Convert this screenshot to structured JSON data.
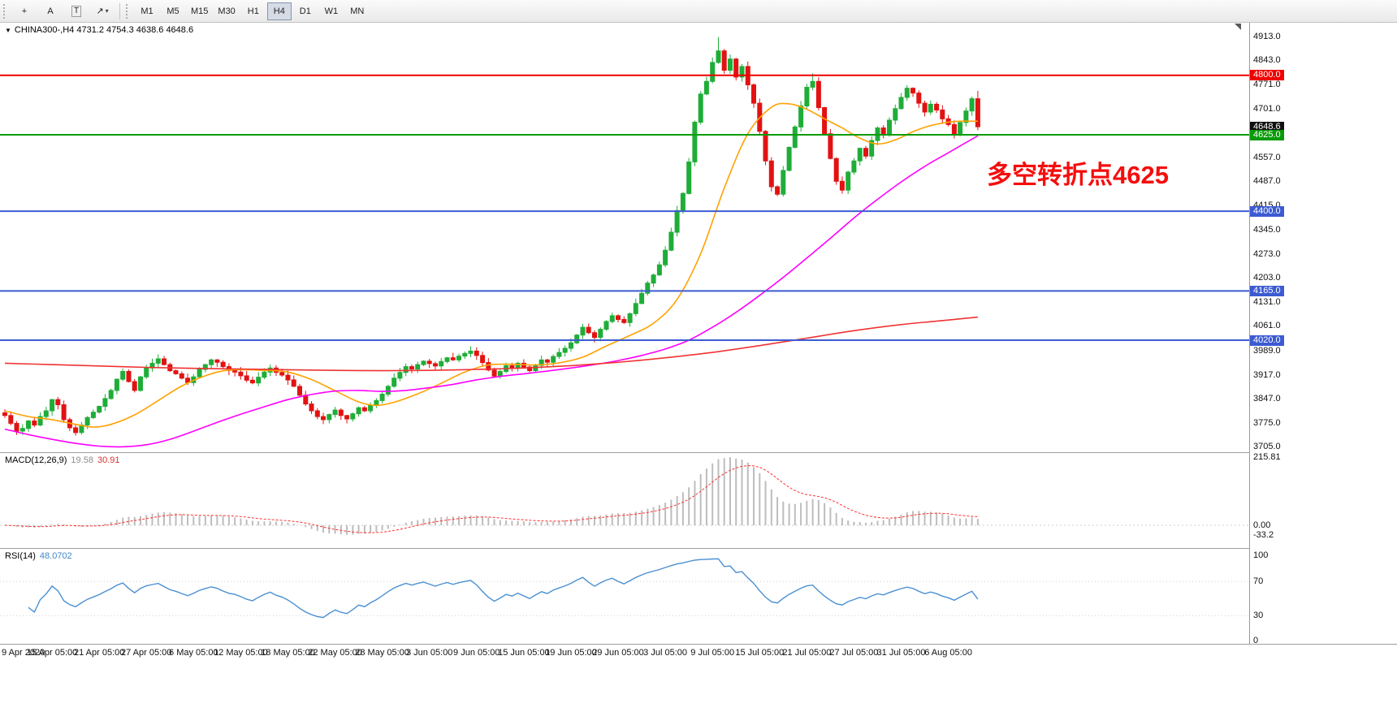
{
  "icons": {
    "chart_dropdown": "▼"
  },
  "toolbar": {
    "caret_glyph": "▾",
    "tools": [
      {
        "name": "crosshair-tool",
        "glyph": "+",
        "boxed": false,
        "has_caret": false
      },
      {
        "name": "text-label-tool",
        "glyph": "A",
        "boxed": false,
        "has_caret": false
      },
      {
        "name": "text-tool",
        "glyph": "T",
        "boxed": true,
        "has_caret": false
      },
      {
        "name": "arrow-shapes-tool",
        "glyph": "↗",
        "boxed": false,
        "has_caret": true
      }
    ],
    "timeframes": [
      {
        "label": "M1",
        "active": false
      },
      {
        "label": "M5",
        "active": false
      },
      {
        "label": "M15",
        "active": false
      },
      {
        "label": "M30",
        "active": false
      },
      {
        "label": "H1",
        "active": false
      },
      {
        "label": "H4",
        "active": true
      },
      {
        "label": "D1",
        "active": false
      },
      {
        "label": "W1",
        "active": false
      },
      {
        "label": "MN",
        "active": false
      }
    ]
  },
  "chart": {
    "symbol_line": "CHINA300-,H4 4731.2 4754.3 4638.6 4648.6",
    "annotation": {
      "text": "多空转折点4625",
      "color": "#f50d0d"
    }
  },
  "price_axis": {
    "ticks": [
      {
        "text": "4913.0",
        "value": 4913
      },
      {
        "text": "4843.0",
        "value": 4843
      },
      {
        "text": "4771.0",
        "value": 4771
      },
      {
        "text": "4701.0",
        "value": 4701
      },
      {
        "text": "4557.0",
        "value": 4557
      },
      {
        "text": "4487.0",
        "value": 4487
      },
      {
        "text": "4415.0",
        "value": 4415
      },
      {
        "text": "4345.0",
        "value": 4345
      },
      {
        "text": "4273.0",
        "value": 4273
      },
      {
        "text": "4203.0",
        "value": 4203
      },
      {
        "text": "4131.0",
        "value": 4131
      },
      {
        "text": "4061.0",
        "value": 4061
      },
      {
        "text": "3989.0",
        "value": 3989
      },
      {
        "text": "3917.0",
        "value": 3917
      },
      {
        "text": "3847.0",
        "value": 3847
      },
      {
        "text": "3775.0",
        "value": 3775
      },
      {
        "text": "3705.0",
        "value": 3705
      }
    ],
    "badges": [
      {
        "text": "4800.0",
        "value": 4800,
        "bg": "#f00000"
      },
      {
        "text": "4648.6",
        "value": 4648.6,
        "bg": "#101010"
      },
      {
        "text": "4625.0",
        "value": 4625,
        "bg": "#0a9b0a"
      },
      {
        "text": "4400.0",
        "value": 4400,
        "bg": "#3c5bd2"
      },
      {
        "text": "4165.0",
        "value": 4165,
        "bg": "#3c5bd2"
      },
      {
        "text": "4020.0",
        "value": 4020,
        "bg": "#3c5bd2"
      }
    ]
  },
  "macd": {
    "label": "MACD(12,26,9)",
    "value": "19.58",
    "signal_value": "30.91",
    "ticks": [
      {
        "text": "215.81",
        "value": 215.81
      },
      {
        "text": "0.00",
        "value": 0
      },
      {
        "text": "-33.2",
        "value": -33.2
      }
    ]
  },
  "rsi": {
    "label": "RSI(14)",
    "value": "48.0702",
    "ticks": [
      {
        "text": "100",
        "value": 100
      },
      {
        "text": "70",
        "value": 70
      },
      {
        "text": "30",
        "value": 30
      },
      {
        "text": "0",
        "value": 0
      }
    ]
  },
  "time_axis": {
    "labels": [
      "9 Apr 2020",
      "15 Apr 05:00",
      "21 Apr 05:00",
      "27 Apr 05:00",
      "6 May 05:00",
      "12 May 05:00",
      "18 May 05:00",
      "22 May 05:00",
      "28 May 05:00",
      "3 Jun 05:00",
      "9 Jun 05:00",
      "15 Jun 05:00",
      "19 Jun 05:00",
      "29 Jun 05:00",
      "3 Jul 05:00",
      "9 Jul 05:00",
      "15 Jul 05:00",
      "21 Jul 05:00",
      "27 Jul 05:00",
      "31 Jul 05:00",
      "6 Aug 05:00"
    ]
  },
  "chart_data": {
    "type": "candlestick",
    "symbol": "CHINA300-",
    "timeframe": "H4",
    "ohlc_current": {
      "open": 4731.2,
      "high": 4754.3,
      "low": 4638.6,
      "close": 4648.6
    },
    "ylim_main": [
      3690,
      4955
    ],
    "ylim_macd": [
      -72,
      229
    ],
    "ylim_rsi": [
      -3,
      108
    ],
    "label_every": 8,
    "macd_scale_max": 215.81,
    "colors": {
      "up": "#1fad38",
      "down": "#e21212",
      "ma_fast": "#ffa200",
      "ma_mid": "#ff00ff",
      "ma_slow": "#ef3333",
      "macd_hist": "#bdbdbd",
      "macd_signal": "#ff3030",
      "rsi": "#4a90d2"
    },
    "levels": [
      {
        "value": 4800,
        "color": "#f00000",
        "width": 2
      },
      {
        "value": 4625,
        "color": "#0a9b0a",
        "width": 2
      },
      {
        "value": 4400,
        "color": "#3c5bd2",
        "width": 2
      },
      {
        "value": 4165,
        "color": "#3c5bd2",
        "width": 2
      },
      {
        "value": 4020,
        "color": "#3c5bd2",
        "width": 2
      }
    ],
    "closes": [
      3798,
      3775,
      3752,
      3760,
      3782,
      3770,
      3795,
      3812,
      3845,
      3830,
      3786,
      3762,
      3748,
      3770,
      3792,
      3808,
      3825,
      3848,
      3872,
      3905,
      3928,
      3898,
      3872,
      3912,
      3938,
      3952,
      3965,
      3948,
      3930,
      3921,
      3908,
      3895,
      3912,
      3934,
      3948,
      3962,
      3955,
      3942,
      3931,
      3926,
      3915,
      3902,
      3894,
      3911,
      3926,
      3938,
      3925,
      3917,
      3903,
      3884,
      3858,
      3832,
      3812,
      3795,
      3786,
      3801,
      3814,
      3798,
      3788,
      3803,
      3821,
      3812,
      3828,
      3842,
      3861,
      3884,
      3908,
      3925,
      3942,
      3935,
      3948,
      3958,
      3951,
      3944,
      3957,
      3968,
      3962,
      3973,
      3981,
      3988,
      3975,
      3954,
      3932,
      3914,
      3928,
      3945,
      3938,
      3952,
      3941,
      3930,
      3946,
      3962,
      3955,
      3972,
      3984,
      3996,
      4012,
      4035,
      4058,
      4042,
      4028,
      4052,
      4075,
      4092,
      4081,
      4072,
      4098,
      4128,
      4158,
      4188,
      4212,
      4242,
      4285,
      4338,
      4402,
      4452,
      4545,
      4662,
      4745,
      4782,
      4838,
      4872,
      4815,
      4848,
      4795,
      4826,
      4772,
      4718,
      4635,
      4548,
      4472,
      4450,
      4520,
      4588,
      4648,
      4710,
      4765,
      4782,
      4705,
      4628,
      4555,
      4488,
      4462,
      4515,
      4548,
      4585,
      4562,
      4608,
      4645,
      4628,
      4668,
      4702,
      4735,
      4762,
      4748,
      4718,
      4692,
      4715,
      4698,
      4672,
      4655,
      4628,
      4661,
      4695,
      4731.2,
      4648.6
    ],
    "candle_overrides": {
      "121": {
        "h": 4913.0
      },
      "137": {
        "h": 4806.0
      },
      "165": {
        "o": 4731.2,
        "h": 4754.3,
        "l": 4638.6,
        "c": 4648.6
      }
    },
    "ma": {
      "orange": [
        [
          0,
          3812
        ],
        [
          4,
          3795
        ],
        [
          8,
          3786
        ],
        [
          12,
          3772
        ],
        [
          15,
          3764
        ],
        [
          18,
          3772
        ],
        [
          22,
          3800
        ],
        [
          26,
          3842
        ],
        [
          30,
          3885
        ],
        [
          34,
          3915
        ],
        [
          38,
          3932
        ],
        [
          44,
          3931
        ],
        [
          48,
          3926
        ],
        [
          52,
          3904
        ],
        [
          56,
          3871
        ],
        [
          60,
          3838
        ],
        [
          63,
          3828
        ],
        [
          66,
          3837
        ],
        [
          70,
          3862
        ],
        [
          74,
          3893
        ],
        [
          78,
          3926
        ],
        [
          82,
          3947
        ],
        [
          86,
          3949
        ],
        [
          90,
          3947
        ],
        [
          94,
          3953
        ],
        [
          98,
          3970
        ],
        [
          102,
          4003
        ],
        [
          106,
          4034
        ],
        [
          110,
          4070
        ],
        [
          114,
          4140
        ],
        [
          118,
          4275
        ],
        [
          122,
          4468
        ],
        [
          126,
          4628
        ],
        [
          130,
          4706
        ],
        [
          133,
          4716
        ],
        [
          136,
          4700
        ],
        [
          139,
          4672
        ],
        [
          142,
          4645
        ],
        [
          145,
          4615
        ],
        [
          148,
          4598
        ],
        [
          151,
          4610
        ],
        [
          154,
          4634
        ],
        [
          157,
          4652
        ],
        [
          161,
          4664
        ],
        [
          165,
          4665
        ]
      ],
      "magenta": [
        [
          0,
          3758
        ],
        [
          4,
          3742
        ],
        [
          8,
          3728
        ],
        [
          12,
          3716
        ],
        [
          16,
          3708
        ],
        [
          20,
          3706
        ],
        [
          24,
          3712
        ],
        [
          28,
          3728
        ],
        [
          32,
          3752
        ],
        [
          36,
          3778
        ],
        [
          40,
          3802
        ],
        [
          44,
          3824
        ],
        [
          48,
          3845
        ],
        [
          52,
          3860
        ],
        [
          56,
          3870
        ],
        [
          60,
          3872
        ],
        [
          64,
          3869
        ],
        [
          68,
          3872
        ],
        [
          72,
          3880
        ],
        [
          76,
          3890
        ],
        [
          80,
          3903
        ],
        [
          84,
          3913
        ],
        [
          88,
          3921
        ],
        [
          92,
          3929
        ],
        [
          96,
          3938
        ],
        [
          100,
          3948
        ],
        [
          104,
          3960
        ],
        [
          108,
          3975
        ],
        [
          112,
          3994
        ],
        [
          116,
          4020
        ],
        [
          120,
          4058
        ],
        [
          124,
          4102
        ],
        [
          128,
          4152
        ],
        [
          132,
          4205
        ],
        [
          136,
          4262
        ],
        [
          140,
          4320
        ],
        [
          144,
          4380
        ],
        [
          148,
          4435
        ],
        [
          152,
          4486
        ],
        [
          156,
          4532
        ],
        [
          160,
          4572
        ],
        [
          163,
          4602
        ],
        [
          165,
          4622
        ]
      ],
      "red": [
        [
          0,
          3952
        ],
        [
          8,
          3948
        ],
        [
          16,
          3944
        ],
        [
          24,
          3940
        ],
        [
          32,
          3937
        ],
        [
          40,
          3935
        ],
        [
          48,
          3933
        ],
        [
          56,
          3931
        ],
        [
          64,
          3930
        ],
        [
          72,
          3931
        ],
        [
          80,
          3934
        ],
        [
          88,
          3938
        ],
        [
          96,
          3945
        ],
        [
          104,
          3955
        ],
        [
          112,
          3968
        ],
        [
          120,
          3984
        ],
        [
          128,
          4004
        ],
        [
          136,
          4026
        ],
        [
          144,
          4048
        ],
        [
          152,
          4066
        ],
        [
          158,
          4076
        ],
        [
          165,
          4088
        ]
      ]
    }
  }
}
